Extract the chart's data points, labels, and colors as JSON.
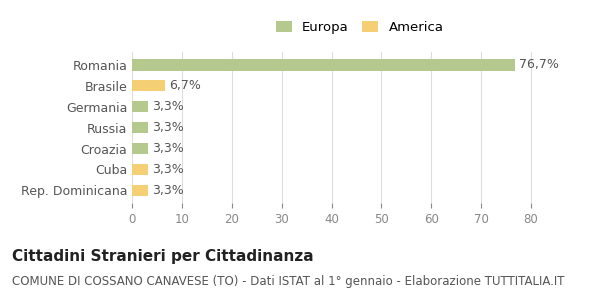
{
  "categories": [
    "Romania",
    "Brasile",
    "Germania",
    "Russia",
    "Croazia",
    "Cuba",
    "Rep. Dominicana"
  ],
  "values": [
    76.7,
    6.7,
    3.3,
    3.3,
    3.3,
    3.3,
    3.3
  ],
  "labels": [
    "76,7%",
    "6,7%",
    "3,3%",
    "3,3%",
    "3,3%",
    "3,3%",
    "3,3%"
  ],
  "colors": [
    "#b5c98e",
    "#f5cf74",
    "#b5c98e",
    "#b5c98e",
    "#b5c98e",
    "#f5cf74",
    "#f5cf74"
  ],
  "legend_items": [
    {
      "label": "Europa",
      "color": "#b5c98e"
    },
    {
      "label": "America",
      "color": "#f5cf74"
    }
  ],
  "xlim": [
    0,
    83
  ],
  "xticks": [
    0,
    10,
    20,
    30,
    40,
    50,
    60,
    70,
    80
  ],
  "title_bold": "Cittadini Stranieri per Cittadinanza",
  "subtitle": "COMUNE DI COSSANO CANAVESE (TO) - Dati ISTAT al 1° gennaio - Elaborazione TUTTITALIA.IT",
  "background_color": "#ffffff",
  "bar_height": 0.55,
  "label_fontsize": 9,
  "title_fontsize": 11,
  "subtitle_fontsize": 8.5
}
